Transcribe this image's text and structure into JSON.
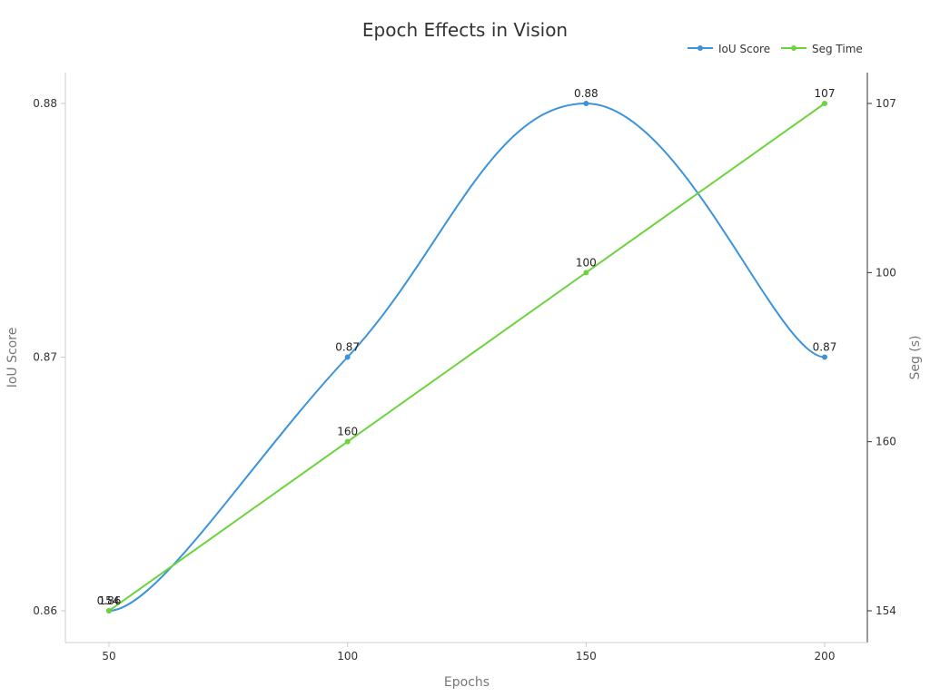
{
  "chart_data": {
    "type": "line",
    "title": "Epoch Effects in Vision",
    "xlabel": "Epochs",
    "ylabel_left": "IoU Score",
    "ylabel_right": "Seg (s)",
    "x": [
      50,
      100,
      150,
      200
    ],
    "x_tick_labels": [
      "50",
      "100",
      "150",
      "200"
    ],
    "y_left_ticks": [
      "0.86",
      "0.87",
      "0.88"
    ],
    "y_left_range": [
      0.86,
      0.88
    ],
    "y_right_ticks": [
      "154",
      "160",
      "100",
      "107"
    ],
    "legend_position": "top-right",
    "grid": false,
    "series": [
      {
        "name": "IoU Score",
        "axis": "left",
        "color": "#3b93dc",
        "smooth": true,
        "values": [
          0.86,
          0.87,
          0.88,
          0.87
        ],
        "labels": [
          "0.86",
          "0.87",
          "0.88",
          "0.87"
        ]
      },
      {
        "name": "Seg Time",
        "axis": "right",
        "color": "#6bd43c",
        "smooth": false,
        "values": [
          154,
          160,
          100,
          107
        ],
        "labels": [
          "154",
          "160",
          "100",
          "107"
        ]
      }
    ]
  }
}
